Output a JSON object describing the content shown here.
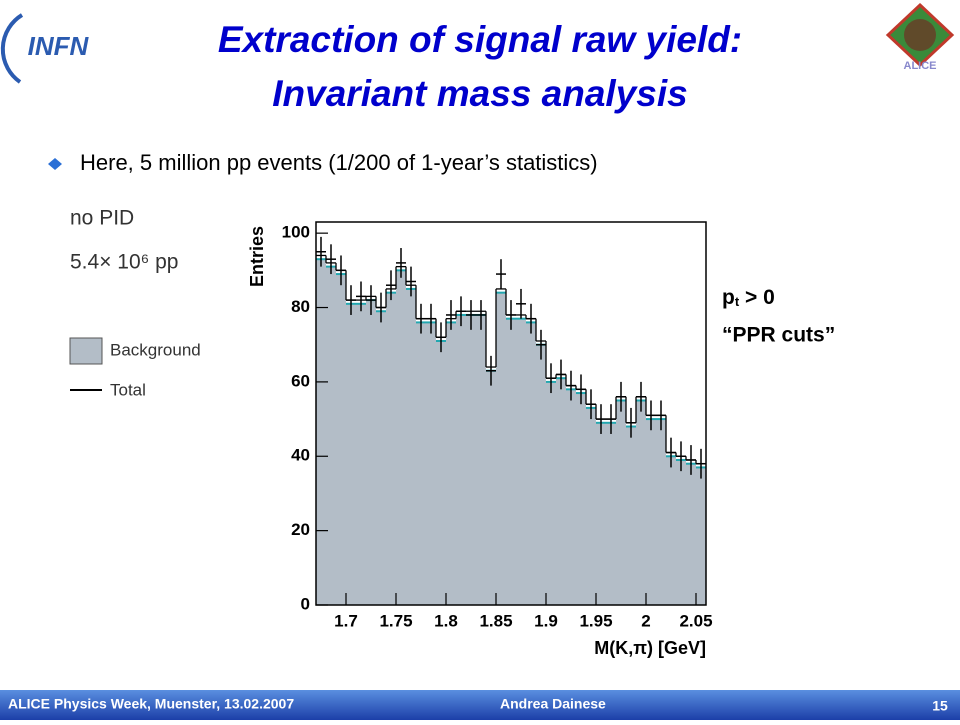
{
  "logo": "INFN",
  "logo_right": "ALICE",
  "title": [
    "Extraction of signal raw yield:",
    "Invariant mass analysis"
  ],
  "bullet": "Here, 5 million pp events (1/200 of 1-year’s statistics)",
  "notes": [
    "no PID",
    "5.4× 10⁶ pp"
  ],
  "cuts": {
    "p": "p",
    "sub": "t",
    "rest": " > 0",
    "line2": "“PPR cuts”"
  },
  "footer": {
    "event": "ALICE Physics Week, Muenster, 13.02.2007",
    "author": "Andrea Dainese",
    "page": "15"
  },
  "chart_data": {
    "type": "histogram",
    "xlabel": "M(K,π) [GeV]",
    "ylabel": "Entries",
    "xlim": [
      1.67,
      2.06
    ],
    "ylim": [
      0,
      103
    ],
    "xticks": [
      1.7,
      1.75,
      1.8,
      1.85,
      1.9,
      1.95,
      2,
      2.05
    ],
    "yticks": [
      0,
      20,
      40,
      60,
      80,
      100
    ],
    "bins": [
      1.67,
      1.68,
      1.69,
      1.7,
      1.71,
      1.72,
      1.73,
      1.74,
      1.75,
      1.76,
      1.77,
      1.78,
      1.79,
      1.8,
      1.81,
      1.82,
      1.83,
      1.84,
      1.85,
      1.86,
      1.87,
      1.88,
      1.89,
      1.9,
      1.91,
      1.92,
      1.93,
      1.94,
      1.95,
      1.96,
      1.97,
      1.98,
      1.99,
      2.0,
      2.01,
      2.02,
      2.03,
      2.04,
      2.05,
      2.06
    ],
    "series": [
      {
        "name": "Background",
        "color": "#b3bdc7",
        "edge": "#22a7b0",
        "values": [
          93,
          91,
          89,
          81,
          81,
          82,
          79,
          84,
          90,
          85,
          76,
          76,
          71,
          76,
          78,
          78,
          78,
          63,
          84,
          77,
          77,
          76,
          70,
          60,
          61,
          58,
          57,
          53,
          49,
          49,
          55,
          48,
          55,
          50,
          50,
          40,
          39,
          38,
          37
        ]
      },
      {
        "name": "Total",
        "color": "#000000",
        "values": [
          94,
          92,
          90,
          82,
          82,
          83,
          80,
          85,
          91,
          86,
          77,
          77,
          72,
          77,
          79,
          79,
          79,
          64,
          85,
          78,
          78,
          77,
          71,
          61,
          62,
          59,
          58,
          54,
          50,
          50,
          56,
          49,
          56,
          51,
          51,
          41,
          40,
          39,
          38
        ]
      },
      {
        "name": null,
        "color": "#000000",
        "values": [
          95,
          93,
          90,
          82,
          83,
          82,
          80,
          86,
          92,
          87,
          77,
          77,
          72,
          78,
          79,
          78,
          78,
          63,
          89,
          78,
          81,
          77,
          70,
          61,
          62,
          59,
          58,
          54,
          50,
          50,
          56,
          49,
          56,
          51,
          51,
          41,
          40,
          39,
          38
        ],
        "errors": [
          4,
          4,
          4,
          4,
          4,
          4,
          4,
          4,
          4,
          4,
          4,
          4,
          4,
          4,
          4,
          4,
          4,
          4,
          4,
          4,
          4,
          4,
          4,
          4,
          4,
          4,
          4,
          4,
          4,
          4,
          4,
          4,
          4,
          4,
          4,
          4,
          4,
          4,
          4
        ]
      }
    ]
  }
}
